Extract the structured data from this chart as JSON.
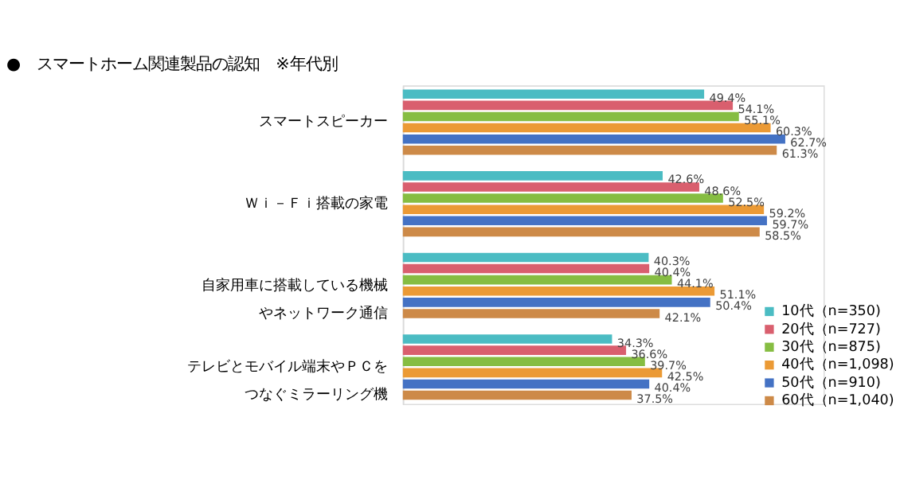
{
  "chart_data": {
    "type": "bar",
    "orientation": "horizontal",
    "title": "●　スマートホーム関連製品の認知　※年代別",
    "categories": [
      "スマートスピーカー",
      "Ｗｉ－Ｆｉ搭載の家電",
      "自家用車に搭載している機械やネットワーク通信",
      "テレビとモバイル端末やＰＣをつなぐミラーリング機"
    ],
    "legend": "bottom right",
    "tick_labels": "y",
    "grid": false,
    "series": [
      {
        "name": "10代（n=350)",
        "color": "#4bbcc3",
        "values": [
          49.4,
          42.6,
          40.3,
          34.3
        ],
        "value_labels": [
          "49.4%",
          "42.6%",
          "40.3%",
          "34.3%"
        ]
      },
      {
        "name": "20代（n=727)",
        "color": "#d95f6e",
        "values": [
          54.1,
          48.6,
          40.4,
          36.6
        ],
        "value_labels": [
          "54.1%",
          "48.6%",
          "40.4%",
          "36.6%"
        ]
      },
      {
        "name": "30代（n=875)",
        "color": "#86bd42",
        "values": [
          55.1,
          52.5,
          44.1,
          39.7
        ],
        "value_labels": [
          "55.1%",
          "52.5%",
          "44.1%",
          "39.7%"
        ]
      },
      {
        "name": "40代（n=1,098)",
        "color": "#eb9a35",
        "values": [
          60.3,
          59.2,
          51.1,
          42.5
        ],
        "value_labels": [
          "60.3%",
          "59.2%",
          "51.1%",
          "42.5%"
        ]
      },
      {
        "name": "50代（n=910)",
        "color": "#4472c4",
        "values": [
          62.7,
          59.7,
          50.4,
          40.4
        ],
        "value_labels": [
          "62.7%",
          "59.7%",
          "50.4%",
          "40.4%"
        ]
      },
      {
        "name": "60代（n=1,040)",
        "color": "#cd8a48",
        "values": [
          61.3,
          58.5,
          42.1,
          37.5
        ],
        "value_labels": [
          "61.3%",
          "58.5%",
          "42.1%",
          "37.5%"
        ]
      }
    ]
  }
}
